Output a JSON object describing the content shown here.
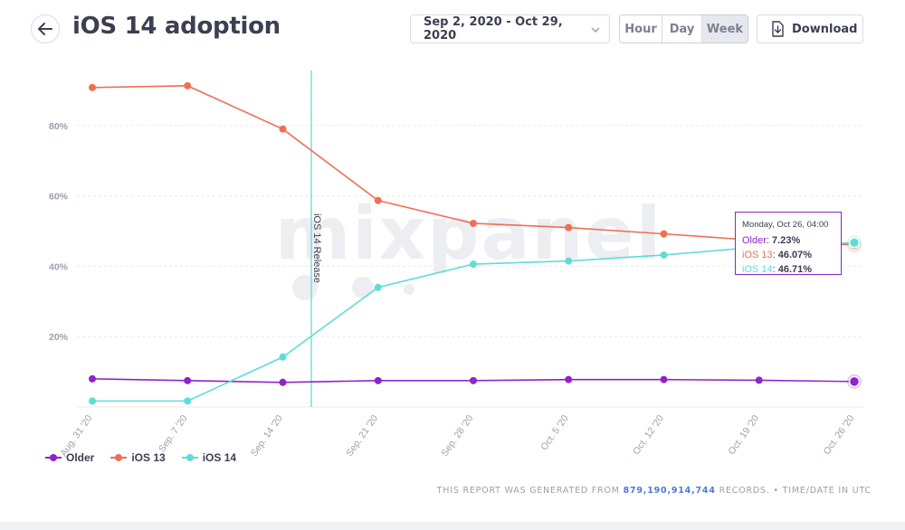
{
  "header": {
    "title": "iOS 14 adoption",
    "date_range": "Sep 2, 2020 - Oct 29, 2020",
    "units": [
      "Hour",
      "Day",
      "Week"
    ],
    "active_unit": "Week",
    "download_label": "Download"
  },
  "icons": {
    "back": "arrow-left-icon",
    "dropdown": "chevron-down-icon",
    "download": "download-icon"
  },
  "colors": {
    "older": "#8e24c9",
    "ios13": "#ef6f55",
    "ios14": "#5fdcd8",
    "release_line": "#5fdcd8",
    "accent": "#4b7bd1"
  },
  "chart_data": {
    "type": "line",
    "categories": [
      "Aug. 31 '20",
      "Sep. 7 '20",
      "Sep. 14 '20",
      "Sep. 21 '20",
      "Sep. 28 '20",
      "Oct. 5 '20",
      "Oct. 12 '20",
      "Oct. 19 '20",
      "Oct. 26 '20"
    ],
    "series": [
      {
        "name": "Older",
        "color": "#8e24c9",
        "values": [
          8.0,
          7.5,
          7.0,
          7.5,
          7.5,
          7.8,
          7.8,
          7.6,
          7.23
        ]
      },
      {
        "name": "iOS 13",
        "color": "#ef6f55",
        "values": [
          90.8,
          91.3,
          79.0,
          58.7,
          52.2,
          51.0,
          49.2,
          47.3,
          46.07
        ]
      },
      {
        "name": "iOS 14",
        "color": "#5fdcd8",
        "values": [
          1.7,
          1.7,
          14.2,
          34.0,
          40.6,
          41.5,
          43.2,
          45.5,
          46.71
        ]
      }
    ],
    "yticks": [
      "20%",
      "40%",
      "60%",
      "80%"
    ],
    "ylim": [
      0,
      100
    ],
    "grid": true,
    "annotation": {
      "label": "iOS 14 Release",
      "position": 2.3
    },
    "legend": "bottom-left",
    "watermark": "mixpanel",
    "tooltip": {
      "date": "Monday, Oct 26, 04:00",
      "rows": [
        {
          "label": "Older",
          "value": "7.23%",
          "color": "#8e24c9"
        },
        {
          "label": "iOS 13",
          "value": "46.07%",
          "color": "#ef6f55"
        },
        {
          "label": "iOS 14",
          "value": "46.71%",
          "color": "#5fdcd8"
        }
      ]
    }
  },
  "footer": {
    "prefix": "THIS REPORT WAS GENERATED FROM",
    "records": "879,190,914,744",
    "suffix": "RECORDS. • TIME/DATE IN UTC"
  }
}
